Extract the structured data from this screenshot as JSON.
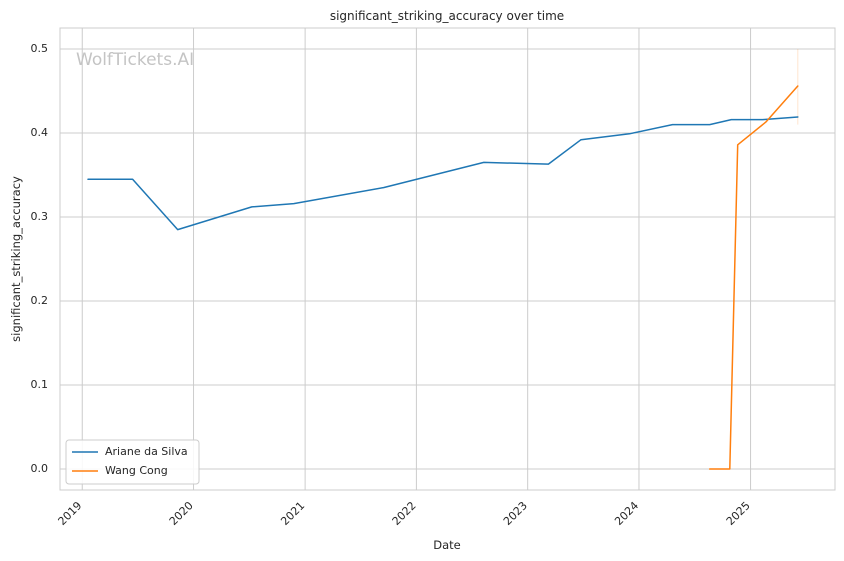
{
  "chart_data": {
    "type": "line",
    "title": "significant_striking_accuracy over time",
    "xlabel": "Date",
    "ylabel": "significant_striking_accuracy",
    "watermark": "WolfTickets.AI",
    "x_type": "date",
    "xlim": [
      "2018-10-20",
      "2025-10-05"
    ],
    "ylim": [
      -0.025,
      0.525
    ],
    "x_ticks": [
      "2019-01-01",
      "2020-01-01",
      "2021-01-01",
      "2022-01-01",
      "2023-01-01",
      "2024-01-01",
      "2025-01-01"
    ],
    "x_tick_labels": [
      "2019",
      "2020",
      "2021",
      "2022",
      "2023",
      "2024",
      "2025"
    ],
    "y_ticks": [
      0.0,
      0.1,
      0.2,
      0.3,
      0.4,
      0.5
    ],
    "y_tick_labels": [
      "0.0",
      "0.1",
      "0.2",
      "0.3",
      "0.4",
      "0.5"
    ],
    "grid": true,
    "legend_position": "lower-left",
    "series": [
      {
        "name": "Ariane da Silva",
        "color": "#1f77b4",
        "points": [
          {
            "x": "2019-01-20",
            "y": 0.345
          },
          {
            "x": "2019-06-15",
            "y": 0.345
          },
          {
            "x": "2019-11-10",
            "y": 0.285
          },
          {
            "x": "2020-07-10",
            "y": 0.312
          },
          {
            "x": "2020-11-25",
            "y": 0.316
          },
          {
            "x": "2021-09-15",
            "y": 0.335
          },
          {
            "x": "2022-08-10",
            "y": 0.365
          },
          {
            "x": "2023-03-10",
            "y": 0.363
          },
          {
            "x": "2023-06-25",
            "y": 0.392
          },
          {
            "x": "2023-12-01",
            "y": 0.399
          },
          {
            "x": "2024-04-20",
            "y": 0.41
          },
          {
            "x": "2024-08-20",
            "y": 0.41
          },
          {
            "x": "2024-10-30",
            "y": 0.416
          },
          {
            "x": "2025-02-10",
            "y": 0.416
          },
          {
            "x": "2025-06-05",
            "y": 0.419
          }
        ]
      },
      {
        "name": "Wang Cong",
        "color": "#ff7f0e",
        "points": [
          {
            "x": "2024-08-20",
            "y": 0.0
          },
          {
            "x": "2024-10-25",
            "y": 0.0
          },
          {
            "x": "2024-11-20",
            "y": 0.386
          },
          {
            "x": "2025-02-20",
            "y": 0.413
          },
          {
            "x": "2025-06-05",
            "y": 0.456
          }
        ],
        "error_band": {
          "x": "2025-06-05",
          "low": 0.41,
          "high": 0.5
        }
      }
    ]
  }
}
